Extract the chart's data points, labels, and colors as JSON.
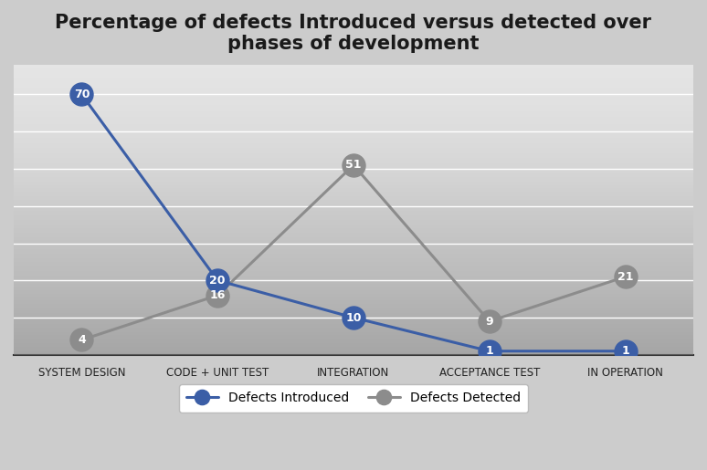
{
  "title": "Percentage of defects Introduced versus detected over\nphases of development",
  "categories": [
    "SYSTEM DESIGN",
    "CODE + UNIT TEST",
    "INTEGRATION",
    "ACCEPTANCE TEST",
    "IN OPERATION"
  ],
  "introduced": [
    70,
    20,
    10,
    1,
    1
  ],
  "detected": [
    4,
    16,
    51,
    9,
    21
  ],
  "introduced_labels": [
    "70",
    "20",
    "10",
    "1",
    "1"
  ],
  "detected_labels": [
    "4",
    "16",
    "51",
    "9",
    "21"
  ],
  "introduced_color": "#3B5EA6",
  "detected_color": "#8C8C8C",
  "background_color": "#D8D8D8",
  "plot_bg_top": "#F0F0F0",
  "plot_bg_bottom": "#C8C8C8",
  "title_fontsize": 15,
  "ylim": [
    0,
    78
  ],
  "yticks": [
    0,
    10,
    20,
    30,
    40,
    50,
    60,
    70
  ],
  "legend_labels": [
    "Defects Introduced",
    "Defects Detected"
  ],
  "grid_color": "#FFFFFF",
  "label_fontsize": 9,
  "axis_label_fontsize": 8.5,
  "marker_size": 18,
  "linewidth": 2.2
}
